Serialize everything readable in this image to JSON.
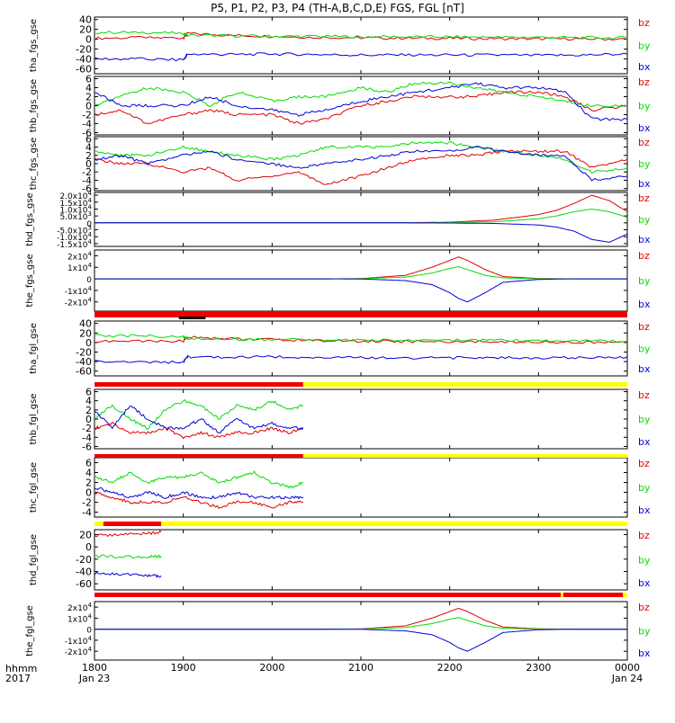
{
  "title": "P5, P1, P2, P3, P4 (TH-A,B,C,D,E) FGS, FGL [nT]",
  "colors": {
    "bz": "#e00000",
    "by": "#00dd00",
    "bx": "#0000dd",
    "bar_red": "#ee0000",
    "bar_yellow": "#ffff00",
    "bar_black": "#000000",
    "axis": "#000000"
  },
  "xaxis": {
    "ticks": [
      "1800",
      "1900",
      "2000",
      "2100",
      "2200",
      "2300",
      "0000"
    ],
    "date_left": "Jan 23",
    "date_right": "Jan 24",
    "corner_label_1": "hhmm",
    "corner_label_2": "2017"
  },
  "chart_data": [
    {
      "type": "line",
      "ylabel": "tha_fgs_gse",
      "yticks": [
        "40",
        "20",
        "0",
        "-20",
        "-40",
        "-60"
      ],
      "ylim": [
        -70,
        45
      ],
      "legend": [
        "bz",
        "by",
        "bx"
      ],
      "x_hours": [
        18.0,
        18.5,
        19.0,
        19.05,
        19.5,
        20.0,
        20.5,
        21.0,
        21.5,
        22.0,
        22.5,
        23.0,
        23.5,
        24.0
      ],
      "series": [
        {
          "name": "bz",
          "values": [
            2,
            3,
            3,
            12,
            8,
            6,
            4,
            3,
            2,
            2,
            1,
            1,
            1,
            0
          ]
        },
        {
          "name": "by",
          "values": [
            14,
            14,
            12,
            8,
            7,
            6,
            6,
            5,
            5,
            5,
            4,
            4,
            3,
            3
          ]
        },
        {
          "name": "bx",
          "values": [
            -40,
            -40,
            -42,
            -30,
            -31,
            -30,
            -31,
            -32,
            -32,
            -32,
            -32,
            -33,
            -32,
            -30
          ]
        }
      ]
    },
    {
      "type": "line",
      "ylabel": "thb_fgs_gse",
      "yticks": [
        "6",
        "4",
        "2",
        "0",
        "-2",
        "-4",
        "-6"
      ],
      "ylim": [
        -6.5,
        6.5
      ],
      "legend": [
        "bz",
        "by",
        "bx"
      ],
      "x_hours": [
        18.0,
        18.3,
        18.6,
        19.0,
        19.3,
        19.6,
        20.0,
        20.3,
        20.6,
        21.0,
        21.3,
        21.6,
        22.0,
        22.3,
        22.6,
        23.0,
        23.3,
        23.6,
        24.0
      ],
      "series": [
        {
          "name": "bz",
          "values": [
            -2,
            -1,
            -4,
            -2,
            -1,
            -2,
            -2,
            -4,
            -3,
            0,
            1,
            2,
            2,
            2,
            3,
            3,
            2,
            -1,
            0
          ]
        },
        {
          "name": "by",
          "values": [
            0,
            2,
            4,
            3,
            0,
            3,
            1,
            2,
            2,
            4,
            3,
            5,
            5,
            4,
            3,
            2,
            1,
            0,
            0
          ]
        },
        {
          "name": "bx",
          "values": [
            3,
            0,
            0,
            0,
            2,
            0,
            -1,
            -2,
            -1,
            1,
            2,
            3,
            4,
            5,
            4,
            4,
            3,
            -3,
            -3
          ]
        }
      ]
    },
    {
      "type": "line",
      "ylabel": "thc_fgs_gse",
      "yticks": [
        "6",
        "4",
        "2",
        "0",
        "-2",
        "-4",
        "-6"
      ],
      "ylim": [
        -6.5,
        6.5
      ],
      "legend": [
        "bz",
        "by",
        "bx"
      ],
      "x_hours": [
        18.0,
        18.3,
        18.6,
        19.0,
        19.3,
        19.6,
        20.0,
        20.3,
        20.6,
        21.0,
        21.3,
        21.6,
        22.0,
        22.3,
        22.6,
        23.0,
        23.3,
        23.6,
        24.0
      ],
      "series": [
        {
          "name": "bz",
          "values": [
            1,
            0,
            0,
            -2,
            -1,
            -4,
            -3,
            -2,
            -5,
            -3,
            -1,
            1,
            2,
            2,
            3,
            3,
            3,
            -1,
            1
          ]
        },
        {
          "name": "by",
          "values": [
            3,
            2,
            2,
            4,
            3,
            2,
            1,
            2,
            4,
            4,
            4,
            5,
            5,
            4,
            3,
            2,
            1,
            -2,
            -1
          ]
        },
        {
          "name": "bx",
          "values": [
            1,
            2,
            0,
            2,
            3,
            1,
            0,
            -1,
            0,
            1,
            2,
            3,
            3,
            4,
            3,
            2,
            2,
            -4,
            -3
          ]
        }
      ]
    },
    {
      "type": "line",
      "ylabel": "thd_fgs_gse",
      "yticks": [
        "2.0x10^4",
        "1.5x10^4",
        "1.0x10^4",
        "5.0x10^3",
        "0",
        "-5.0x10^3",
        "-1.0x10^4",
        "-1.5x10^4"
      ],
      "ylim": [
        -17000,
        22000
      ],
      "legend": [
        "bz",
        "by",
        "bx"
      ],
      "x_hours": [
        18.0,
        20.0,
        21.0,
        21.5,
        22.0,
        22.5,
        23.0,
        23.2,
        23.4,
        23.6,
        23.8,
        24.0
      ],
      "series": [
        {
          "name": "bz",
          "values": [
            0,
            0,
            0,
            100,
            500,
            2000,
            6000,
            9000,
            14000,
            20000,
            16000,
            8000
          ]
        },
        {
          "name": "by",
          "values": [
            0,
            0,
            0,
            0,
            200,
            800,
            3000,
            5000,
            8000,
            10000,
            8000,
            4000
          ]
        },
        {
          "name": "bx",
          "values": [
            0,
            0,
            0,
            0,
            -100,
            -400,
            -1500,
            -3000,
            -6000,
            -12000,
            -14000,
            -8000
          ]
        }
      ]
    },
    {
      "type": "line",
      "ylabel": "the_fgs_gse",
      "yticks": [
        "2x10^4",
        "1x10^4",
        "0",
        "-1x10^4",
        "-2x10^4"
      ],
      "ylim": [
        -28000,
        25000
      ],
      "legend": [
        "bz",
        "by",
        "bx"
      ],
      "x_hours": [
        18.0,
        20.6,
        21.0,
        21.5,
        21.8,
        22.0,
        22.1,
        22.2,
        22.4,
        22.6,
        23.0,
        23.4,
        24.0
      ],
      "series": [
        {
          "name": "bz",
          "values": [
            0,
            0,
            200,
            3000,
            10000,
            16000,
            19000,
            16000,
            8000,
            2000,
            300,
            0,
            0
          ]
        },
        {
          "name": "by",
          "values": [
            0,
            0,
            100,
            1500,
            5000,
            9000,
            10500,
            8000,
            3000,
            800,
            100,
            0,
            0
          ]
        },
        {
          "name": "bx",
          "values": [
            0,
            0,
            -100,
            -1500,
            -5000,
            -12000,
            -17000,
            -20000,
            -12000,
            -3000,
            -500,
            0,
            0
          ]
        }
      ]
    },
    {
      "type": "line",
      "ylabel": "tha_fgl_gse",
      "yticks": [
        "40",
        "20",
        "0",
        "-20",
        "-40",
        "-60"
      ],
      "ylim": [
        -70,
        45
      ],
      "legend": [
        "bz",
        "by",
        "bx"
      ],
      "x_hours": [
        18.0,
        18.5,
        19.0,
        19.05,
        19.5,
        20.0,
        20.5,
        21.0,
        21.5,
        22.0,
        22.5,
        23.0,
        23.5,
        24.0
      ],
      "series": [
        {
          "name": "bz",
          "values": [
            2,
            3,
            3,
            12,
            8,
            6,
            4,
            3,
            2,
            2,
            1,
            1,
            1,
            0
          ]
        },
        {
          "name": "by",
          "values": [
            14,
            14,
            12,
            8,
            7,
            6,
            6,
            5,
            5,
            5,
            4,
            4,
            3,
            3
          ]
        },
        {
          "name": "bx",
          "values": [
            -40,
            -40,
            -42,
            -30,
            -31,
            -30,
            -31,
            -32,
            -32,
            -32,
            -32,
            -33,
            -32,
            -30
          ]
        }
      ]
    },
    {
      "type": "line",
      "ylabel": "thb_fgl_gse",
      "yticks": [
        "6",
        "4",
        "2",
        "0",
        "-2",
        "-4",
        "-6"
      ],
      "ylim": [
        -6.5,
        6.5
      ],
      "legend": [
        "bz",
        "by",
        "bx"
      ],
      "x_hours": [
        18.0,
        18.2,
        18.4,
        18.6,
        18.8,
        19.0,
        19.2,
        19.4,
        19.6,
        19.8,
        20.0,
        20.2,
        20.35
      ],
      "series": [
        {
          "name": "bz",
          "values": [
            -2,
            -1,
            -3,
            -3,
            -2,
            -4,
            -3,
            -4,
            -3,
            -3,
            -2,
            -3,
            -2
          ]
        },
        {
          "name": "by",
          "values": [
            0,
            3,
            0,
            -2,
            2,
            4,
            3,
            0,
            3,
            2,
            4,
            2,
            3
          ]
        },
        {
          "name": "bx",
          "values": [
            2,
            -2,
            3,
            0,
            -2,
            -2,
            0,
            -3,
            0,
            -2,
            -1,
            -2,
            -2
          ]
        }
      ]
    },
    {
      "type": "line",
      "ylabel": "thc_fgl_gse",
      "yticks": [
        "6",
        "4",
        "2",
        "0",
        "-2",
        "-4"
      ],
      "ylim": [
        -5,
        7
      ],
      "legend": [
        "bz",
        "by",
        "bx"
      ],
      "x_hours": [
        18.0,
        18.2,
        18.4,
        18.6,
        18.8,
        19.0,
        19.2,
        19.4,
        19.6,
        19.8,
        20.0,
        20.2,
        20.35
      ],
      "series": [
        {
          "name": "bz",
          "values": [
            0,
            -1,
            -2,
            -2,
            -2,
            -1,
            -2,
            -3,
            -2,
            -2,
            -3,
            -2,
            -2
          ]
        },
        {
          "name": "by",
          "values": [
            3,
            2,
            4,
            2,
            3,
            3,
            4,
            2,
            3,
            4,
            2,
            1,
            2
          ]
        },
        {
          "name": "bx",
          "values": [
            1,
            0,
            -1,
            0,
            -1,
            0,
            -1,
            -1,
            0,
            -1,
            -1,
            -1,
            -1
          ]
        }
      ]
    },
    {
      "type": "line",
      "ylabel": "thd_fgl_gse",
      "yticks": [
        "20",
        "0",
        "-20",
        "-40",
        "-60"
      ],
      "ylim": [
        -70,
        28
      ],
      "legend": [
        "bz",
        "by",
        "bx"
      ],
      "x_hours": [
        18.0,
        18.3,
        18.6,
        18.75
      ],
      "series": [
        {
          "name": "bz",
          "values": [
            18,
            20,
            22,
            24
          ]
        },
        {
          "name": "by",
          "values": [
            -15,
            -16,
            -16,
            -15
          ]
        },
        {
          "name": "bx",
          "values": [
            -43,
            -45,
            -46,
            -47
          ]
        }
      ]
    },
    {
      "type": "line",
      "ylabel": "the_fgl_gse",
      "yticks": [
        "2x10^4",
        "1x10^4",
        "0",
        "-1x10^4",
        "-2x10^4"
      ],
      "ylim": [
        -28000,
        25000
      ],
      "legend": [
        "bz",
        "by",
        "bx"
      ],
      "x_hours": [
        18.0,
        19.4,
        20.6,
        21.0,
        21.5,
        21.8,
        22.0,
        22.1,
        22.2,
        22.4,
        22.6,
        23.0,
        23.4,
        24.0
      ],
      "series": [
        {
          "name": "bz",
          "values": [
            0,
            0,
            0,
            200,
            3000,
            10000,
            16000,
            19000,
            16000,
            8000,
            2000,
            300,
            0,
            0
          ]
        },
        {
          "name": "by",
          "values": [
            0,
            0,
            0,
            100,
            1500,
            5000,
            9000,
            10500,
            8000,
            3000,
            800,
            100,
            0,
            0
          ]
        },
        {
          "name": "bx",
          "values": [
            0,
            0,
            0,
            -100,
            -1500,
            -5000,
            -12000,
            -17000,
            -20000,
            -12000,
            -3000,
            -500,
            0,
            0
          ]
        }
      ]
    }
  ],
  "state_bars": [
    {
      "segments": [
        {
          "from": 18.0,
          "to": 24.0,
          "color": "red"
        }
      ],
      "marker": {
        "from": 18.95,
        "to": 19.25,
        "color": "black"
      }
    },
    {
      "segments": [
        {
          "from": 18.0,
          "to": 20.35,
          "color": "red"
        },
        {
          "from": 20.35,
          "to": 24.0,
          "color": "yellow"
        }
      ]
    },
    {
      "segments": [
        {
          "from": 18.0,
          "to": 20.35,
          "color": "red"
        },
        {
          "from": 20.35,
          "to": 24.0,
          "color": "yellow"
        }
      ]
    },
    {
      "segments": [
        {
          "from": 18.0,
          "to": 18.1,
          "color": "yellow"
        },
        {
          "from": 18.1,
          "to": 18.75,
          "color": "red"
        },
        {
          "from": 18.75,
          "to": 24.0,
          "color": "yellow"
        }
      ]
    },
    {
      "segments": [
        {
          "from": 18.0,
          "to": 23.25,
          "color": "red"
        },
        {
          "from": 23.25,
          "to": 23.28,
          "color": "yellow"
        },
        {
          "from": 23.28,
          "to": 23.95,
          "color": "red"
        },
        {
          "from": 23.95,
          "to": 24.0,
          "color": "yellow"
        }
      ]
    }
  ]
}
